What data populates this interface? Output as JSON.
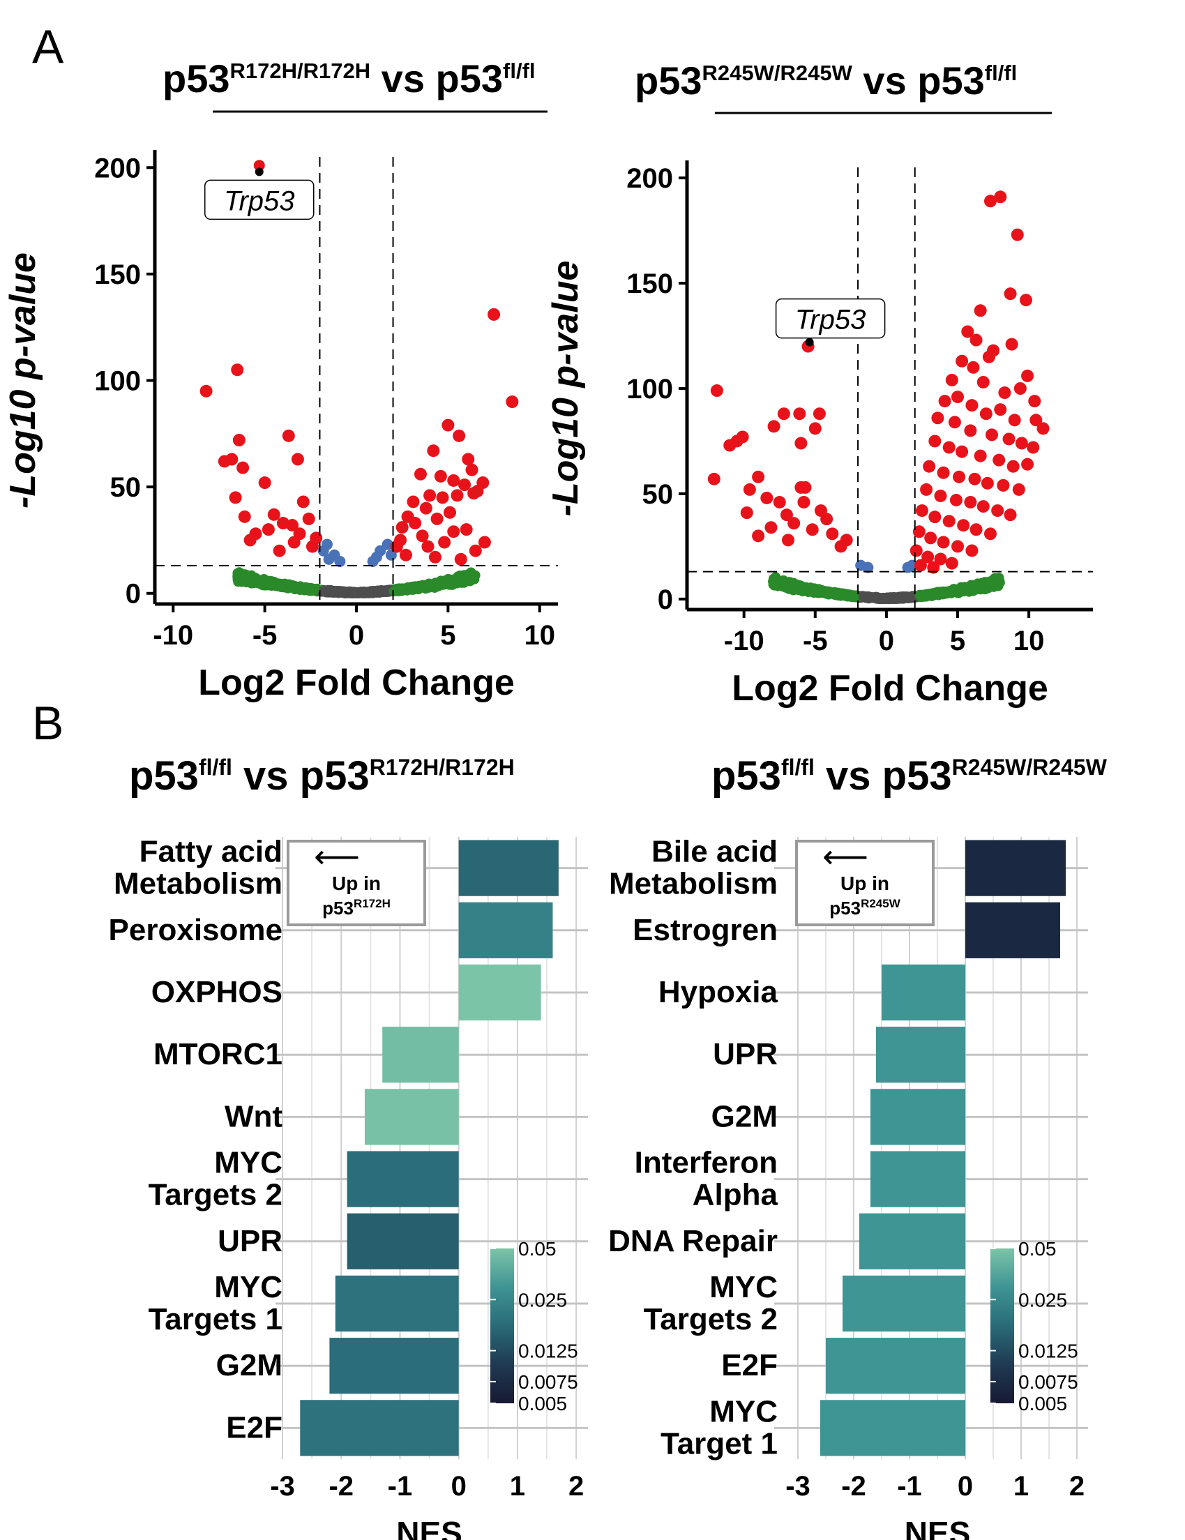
{
  "panels": {
    "a": {
      "label": "A"
    },
    "b": {
      "label": "B"
    }
  },
  "colors": {
    "red": "#e8131a",
    "blue": "#4a72b8",
    "green": "#2a8a2a",
    "grey": "#4d4d4d",
    "gradient": [
      "#171a33",
      "#1f3a52",
      "#2a6b78",
      "#3f9494",
      "#7cc4a7"
    ]
  },
  "chart_data": [
    {
      "type": "scatter",
      "title": {
        "pre": "p53",
        "sup1": "R172H/R172H",
        "mid": " vs p53",
        "sup2": "fl/fl"
      },
      "xlabel": "Log2 Fold Change",
      "ylabel": "-Log10 p-value",
      "xlim": [
        -11,
        11
      ],
      "ylim": [
        -5,
        205
      ],
      "xticks": [
        -10,
        -5,
        0,
        5,
        10
      ],
      "yticks": [
        0,
        50,
        100,
        150,
        200
      ],
      "fc_threshold": 2,
      "p_threshold": 13,
      "annotation": {
        "text": "Trp53",
        "x": -5.3,
        "y": 198
      },
      "points": [
        [
          -5.3,
          201
        ],
        [
          7.5,
          131
        ],
        [
          8.5,
          90
        ],
        [
          -8.2,
          95
        ],
        [
          -6.5,
          105
        ],
        [
          -7.2,
          62
        ],
        [
          -6.8,
          63
        ],
        [
          -6.4,
          72
        ],
        [
          -6.2,
          59
        ],
        [
          -6.6,
          45
        ],
        [
          -5.0,
          52
        ],
        [
          -3.7,
          74
        ],
        [
          -3.2,
          63
        ],
        [
          -4.5,
          37
        ],
        [
          -2.9,
          43
        ],
        [
          -6.1,
          36
        ],
        [
          -4.0,
          33
        ],
        [
          -3.5,
          32
        ],
        [
          -5.5,
          28
        ],
        [
          -4.8,
          30
        ],
        [
          -2.6,
          35
        ],
        [
          -3.1,
          28
        ],
        [
          -5.8,
          25
        ],
        [
          -3.4,
          24
        ],
        [
          -4.2,
          20
        ],
        [
          -2.4,
          22
        ],
        [
          -2.2,
          26
        ],
        [
          5.0,
          79
        ],
        [
          5.6,
          74
        ],
        [
          4.2,
          67
        ],
        [
          6.1,
          63
        ],
        [
          3.5,
          56
        ],
        [
          6.3,
          58
        ],
        [
          4.6,
          55
        ],
        [
          5.3,
          53
        ],
        [
          5.9,
          51
        ],
        [
          6.9,
          52
        ],
        [
          6.6,
          48
        ],
        [
          4.0,
          46
        ],
        [
          4.7,
          45
        ],
        [
          5.5,
          46
        ],
        [
          6.4,
          47
        ],
        [
          3.1,
          43
        ],
        [
          3.8,
          40
        ],
        [
          2.8,
          36
        ],
        [
          5.1,
          38
        ],
        [
          4.4,
          35
        ],
        [
          3.2,
          33
        ],
        [
          2.5,
          31
        ],
        [
          6.0,
          30
        ],
        [
          5.3,
          29
        ],
        [
          3.6,
          27
        ],
        [
          2.4,
          25
        ],
        [
          4.8,
          24
        ],
        [
          3.9,
          22
        ],
        [
          2.2,
          22
        ],
        [
          6.5,
          20
        ],
        [
          7.0,
          24
        ],
        [
          2.7,
          18
        ],
        [
          4.3,
          17
        ],
        [
          5.7,
          16
        ]
      ],
      "blue_points": [
        [
          -1.6,
          23
        ],
        [
          -1.8,
          20
        ],
        [
          -1.2,
          18
        ],
        [
          -1.5,
          16
        ],
        [
          1.7,
          23
        ],
        [
          1.3,
          20
        ],
        [
          1.9,
          18
        ],
        [
          1.1,
          17
        ],
        [
          -0.9,
          15
        ],
        [
          0.9,
          15
        ]
      ]
    },
    {
      "type": "scatter",
      "title": {
        "pre": "p53",
        "sup1": "R245W/R245W",
        "mid": " vs p53",
        "sup2": "fl/fl"
      },
      "xlabel": "Log2 Fold Change",
      "ylabel": "-Log10 p-value",
      "xlim": [
        -14,
        14.5
      ],
      "ylim": [
        -5,
        205
      ],
      "xticks": [
        -10,
        -5,
        0,
        5,
        10
      ],
      "yticks": [
        0,
        50,
        100,
        150,
        200
      ],
      "fc_threshold": 2,
      "p_threshold": 13,
      "annotation": {
        "text": "Trp53",
        "x": -5.4,
        "y": 122
      },
      "points": [
        [
          -5.5,
          120
        ],
        [
          -11.9,
          99
        ],
        [
          -10.5,
          75
        ],
        [
          -10.1,
          77
        ],
        [
          -11.0,
          73
        ],
        [
          -7.9,
          82
        ],
        [
          -6.1,
          88
        ],
        [
          -4.7,
          88
        ],
        [
          -5.0,
          81
        ],
        [
          -7.2,
          88
        ],
        [
          -6.0,
          74
        ],
        [
          -9.0,
          58
        ],
        [
          -9.6,
          52
        ],
        [
          -12.1,
          57
        ],
        [
          -6.0,
          53
        ],
        [
          -5.7,
          53
        ],
        [
          -8.4,
          48
        ],
        [
          -7.5,
          46
        ],
        [
          -5.8,
          46
        ],
        [
          -9.8,
          41
        ],
        [
          -7.0,
          40
        ],
        [
          -4.6,
          42
        ],
        [
          -4.2,
          38
        ],
        [
          -6.5,
          36
        ],
        [
          -8.1,
          34
        ],
        [
          -5.2,
          33
        ],
        [
          -3.8,
          31
        ],
        [
          -2.8,
          28
        ],
        [
          -9.0,
          30
        ],
        [
          -6.9,
          28
        ],
        [
          -3.2,
          25
        ],
        [
          8.0,
          191
        ],
        [
          7.3,
          189
        ],
        [
          9.2,
          173
        ],
        [
          8.7,
          145
        ],
        [
          9.8,
          142
        ],
        [
          6.6,
          137
        ],
        [
          5.7,
          127
        ],
        [
          6.3,
          123
        ],
        [
          7.5,
          118
        ],
        [
          8.8,
          121
        ],
        [
          5.3,
          113
        ],
        [
          6.1,
          110
        ],
        [
          7.2,
          115
        ],
        [
          9.9,
          106
        ],
        [
          4.6,
          104
        ],
        [
          6.8,
          103
        ],
        [
          5.0,
          96
        ],
        [
          8.3,
          98
        ],
        [
          9.4,
          100
        ],
        [
          10.4,
          94
        ],
        [
          4.1,
          94
        ],
        [
          6.0,
          92
        ],
        [
          7.0,
          88
        ],
        [
          8.0,
          90
        ],
        [
          9.0,
          85
        ],
        [
          10.5,
          85
        ],
        [
          11.0,
          81
        ],
        [
          3.6,
          86
        ],
        [
          4.8,
          84
        ],
        [
          5.9,
          80
        ],
        [
          7.4,
          78
        ],
        [
          8.6,
          76
        ],
        [
          9.5,
          74
        ],
        [
          10.3,
          72
        ],
        [
          3.4,
          75
        ],
        [
          4.4,
          72
        ],
        [
          5.3,
          70
        ],
        [
          6.6,
          68
        ],
        [
          7.9,
          66
        ],
        [
          8.9,
          63
        ],
        [
          9.9,
          64
        ],
        [
          3.0,
          63
        ],
        [
          4.0,
          60
        ],
        [
          5.1,
          58
        ],
        [
          6.2,
          57
        ],
        [
          7.1,
          55
        ],
        [
          8.2,
          54
        ],
        [
          9.3,
          52
        ],
        [
          2.8,
          52
        ],
        [
          3.8,
          49
        ],
        [
          4.9,
          47
        ],
        [
          5.9,
          46
        ],
        [
          6.8,
          44
        ],
        [
          7.8,
          42
        ],
        [
          8.7,
          40
        ],
        [
          2.5,
          42
        ],
        [
          3.4,
          39
        ],
        [
          4.4,
          37
        ],
        [
          5.4,
          35
        ],
        [
          6.3,
          33
        ],
        [
          7.3,
          31
        ],
        [
          2.3,
          32
        ],
        [
          3.1,
          29
        ],
        [
          4.0,
          27
        ],
        [
          5.0,
          25
        ],
        [
          6.0,
          23
        ],
        [
          2.1,
          23
        ],
        [
          2.9,
          20
        ],
        [
          3.8,
          19
        ],
        [
          4.6,
          17
        ],
        [
          2.4,
          16
        ],
        [
          3.3,
          15
        ]
      ],
      "blue_points": [
        [
          -1.8,
          16
        ],
        [
          -1.3,
          15
        ],
        [
          1.5,
          15
        ],
        [
          1.8,
          16
        ]
      ]
    },
    {
      "type": "bar",
      "orientation": "horizontal",
      "title": {
        "pre": "p53",
        "sup1": "fl/fl",
        "mid": " vs p53",
        "sup2": "R172H/R172H"
      },
      "xlabel": "NES",
      "xlim": [
        -3,
        2.2
      ],
      "xticks": [
        -3,
        -2,
        -1,
        0,
        1,
        2
      ],
      "legend_box": {
        "text1": "Up in",
        "text2": "p53",
        "sup": "R172H"
      },
      "colorbar": {
        "ticks": [
          "0.05",
          "0.025",
          "0.0125",
          "0.0075",
          "0.005"
        ]
      },
      "categories": [
        "Fatty acid\nMetabolism",
        "Peroxisome",
        "OXPHOS",
        "MTORC1",
        "Wnt",
        "MYC\nTargets 2",
        "UPR",
        "MYC\nTargets 1",
        "G2M",
        "E2F"
      ],
      "values": [
        1.7,
        1.6,
        1.4,
        -1.3,
        -1.6,
        -1.9,
        -1.9,
        -2.1,
        -2.2,
        -2.7
      ],
      "qvalues": [
        0.012,
        0.018,
        0.05,
        0.045,
        0.048,
        0.013,
        0.011,
        0.014,
        0.013,
        0.014
      ]
    },
    {
      "type": "bar",
      "orientation": "horizontal",
      "title": {
        "pre": "p53",
        "sup1": "fl/fl",
        "mid": " vs p53",
        "sup2": "R245W/R245W"
      },
      "xlabel": "NES",
      "xlim": [
        -3.3,
        2.2
      ],
      "xticks": [
        -3,
        -2,
        -1,
        0,
        1,
        2
      ],
      "legend_box": {
        "text1": "Up in",
        "text2": "p53",
        "sup": "R245W"
      },
      "colorbar": {
        "ticks": [
          "0.05",
          "0.025",
          "0.0125",
          "0.0075",
          "0.005"
        ]
      },
      "categories": [
        "Bile acid\nMetabolism",
        "Estrogren",
        "Hypoxia",
        "UPR",
        "G2M",
        "Interferon\nAlpha",
        "DNA Repair",
        "MYC\nTargets 2",
        "E2F",
        "MYC\nTarget 1"
      ],
      "values": [
        1.8,
        1.7,
        -1.5,
        -1.6,
        -1.7,
        -1.7,
        -1.9,
        -2.2,
        -2.5,
        -2.6
      ],
      "qvalues": [
        0.006,
        0.006,
        0.025,
        0.025,
        0.025,
        0.025,
        0.025,
        0.025,
        0.025,
        0.025
      ]
    }
  ]
}
